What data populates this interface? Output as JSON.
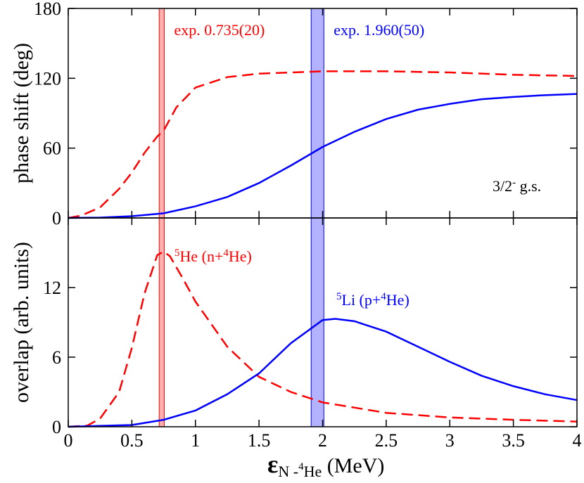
{
  "chart_data": [
    {
      "type": "line",
      "ylabel": "phase shift (deg)",
      "xlim": [
        0,
        4
      ],
      "xticks": [
        0,
        0.5,
        1,
        1.5,
        2,
        2.5,
        3,
        3.5,
        4
      ],
      "ylim": [
        0,
        180
      ],
      "yticks": [
        0,
        60,
        120,
        180
      ],
      "series": [
        {
          "color": "#ff0000",
          "dash": true,
          "x": [
            0,
            0.1,
            0.25,
            0.4,
            0.5,
            0.6,
            0.7,
            0.75,
            0.85,
            1.0,
            1.25,
            1.5,
            2.0,
            2.5,
            3.0,
            3.5,
            4.0
          ],
          "values": [
            0,
            2,
            9,
            25,
            39,
            56,
            70,
            75,
            95,
            112,
            121,
            124,
            126,
            126,
            125,
            123,
            122
          ]
        },
        {
          "color": "#0000ff",
          "dash": false,
          "x": [
            0,
            0.25,
            0.5,
            0.75,
            1.0,
            1.25,
            1.5,
            1.75,
            2.0,
            2.25,
            2.5,
            2.75,
            3.0,
            3.25,
            3.5,
            3.75,
            4.0
          ],
          "values": [
            0,
            0.3,
            1.5,
            4,
            10,
            18,
            30,
            45,
            61,
            74,
            85,
            93,
            98,
            102,
            104,
            105.5,
            106.5
          ]
        }
      ],
      "bands": [
        {
          "center": 0.735,
          "error": 0.02,
          "color": "#ff0000",
          "label": "exp. 0.735(20)"
        },
        {
          "center": 1.96,
          "error": 0.05,
          "color": "#0000ff",
          "label": "exp. 1.960(50)"
        }
      ],
      "annotations": [
        {
          "color": "#000000",
          "parts": [
            {
              "text": "3/2",
              "style": "normal"
            },
            {
              "text": "-",
              "style": "sup"
            },
            {
              "text": " g.s.",
              "style": "normal"
            }
          ]
        }
      ]
    },
    {
      "type": "line",
      "ylabel": "overlap (arb. units)",
      "xlabel": [
        {
          "text": "ε",
          "style": "big"
        },
        {
          "text": "N -",
          "style": "sub"
        },
        {
          "text": "4",
          "style": "subsup"
        },
        {
          "text": "He",
          "style": "sub"
        },
        {
          "text": " (MeV)",
          "style": "normal"
        }
      ],
      "xlim": [
        0,
        4
      ],
      "xticks": [
        0,
        0.5,
        1,
        1.5,
        2,
        2.5,
        3,
        3.5,
        4
      ],
      "ylim": [
        0,
        18
      ],
      "yticks": [
        0,
        6,
        12
      ],
      "series": [
        {
          "color": "#ff0000",
          "dash": true,
          "x": [
            0,
            0.15,
            0.25,
            0.4,
            0.5,
            0.6,
            0.7,
            0.75,
            0.8,
            0.9,
            1.0,
            1.25,
            1.5,
            1.75,
            2.0,
            2.5,
            3.0,
            3.5,
            4.0
          ],
          "values": [
            0,
            0.1,
            0.7,
            3,
            6.8,
            11.5,
            14.8,
            15.1,
            14.7,
            12.8,
            10.8,
            6.9,
            4.3,
            3.0,
            2.1,
            1.2,
            0.8,
            0.6,
            0.45
          ]
        },
        {
          "color": "#0000ff",
          "dash": false,
          "x": [
            0,
            0.5,
            0.75,
            1.0,
            1.25,
            1.5,
            1.75,
            2.0,
            2.1,
            2.25,
            2.5,
            2.75,
            3.0,
            3.25,
            3.5,
            3.75,
            4.0
          ],
          "values": [
            0,
            0.15,
            0.6,
            1.4,
            2.8,
            4.6,
            7.2,
            9.2,
            9.3,
            9.1,
            8.2,
            6.9,
            5.6,
            4.4,
            3.5,
            2.8,
            2.3
          ]
        }
      ],
      "bands": [
        {
          "center": 0.735,
          "error": 0.02,
          "color": "#ff0000"
        },
        {
          "center": 1.96,
          "error": 0.05,
          "color": "#0000ff"
        }
      ],
      "annotations": [
        {
          "color": "#ff0000",
          "parts": [
            {
              "text": "5",
              "style": "sup"
            },
            {
              "text": "He  (n+",
              "style": "normal"
            },
            {
              "text": "4",
              "style": "sup"
            },
            {
              "text": "He)",
              "style": "normal"
            }
          ]
        },
        {
          "color": "#0000ff",
          "parts": [
            {
              "text": "5",
              "style": "sup"
            },
            {
              "text": "Li  (p+",
              "style": "normal"
            },
            {
              "text": "4",
              "style": "sup"
            },
            {
              "text": "He)",
              "style": "normal"
            }
          ]
        }
      ]
    }
  ]
}
